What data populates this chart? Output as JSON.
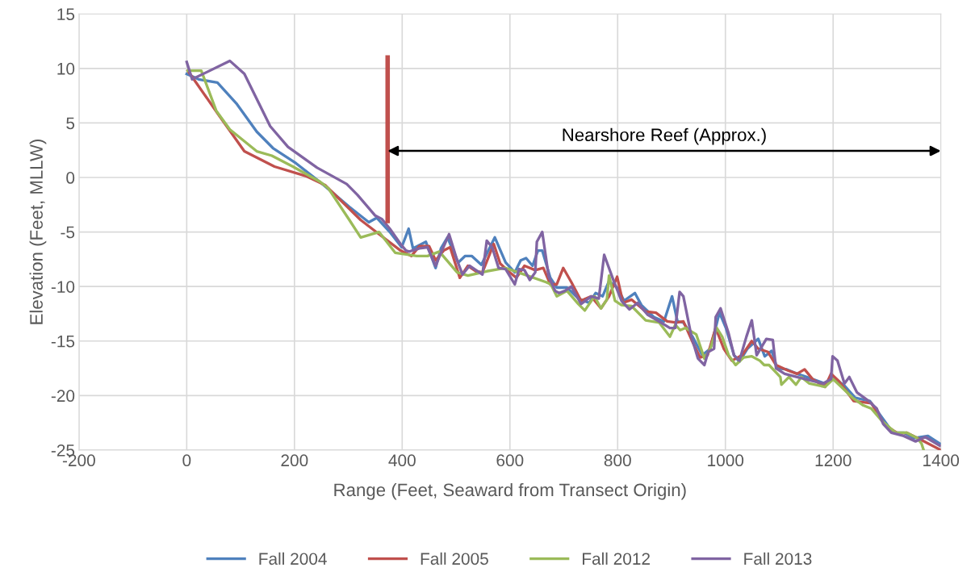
{
  "chart_data": {
    "type": "line",
    "xlabel": "Range (Feet, Seaward from Transect Origin)",
    "ylabel": "Elevation (Feet, MLLW)",
    "xlim": [
      -200,
      1400
    ],
    "xticks": [
      -200,
      0,
      200,
      400,
      600,
      800,
      1000,
      1200,
      1400
    ],
    "ylim": [
      -25,
      15
    ],
    "yticks": [
      -25,
      -20,
      -15,
      -10,
      -5,
      0,
      5,
      10,
      15
    ],
    "grid": true,
    "legend": "bottom",
    "marker": "none",
    "line_style": "solid",
    "annotations": [
      "Nearshore Reef (Approx.)"
    ],
    "series": [
      {
        "name": "Fall 2004",
        "color": "#4f81bd",
        "x": [
          0,
          22,
          57,
          92,
          130,
          160,
          203,
          252,
          302,
          338,
          353,
          377,
          399,
          412,
          420,
          444,
          462,
          472,
          484,
          504,
          517,
          529,
          547,
          560,
          572,
          592,
          609,
          620,
          630,
          642,
          652,
          660,
          675,
          687,
          706,
          727,
          747,
          759,
          772,
          784,
          799,
          812,
          832,
          844,
          867,
          886,
          901,
          911,
          922,
          939,
          957,
          972,
          989,
          1001,
          1016,
          1026,
          1041,
          1061,
          1073,
          1086,
          1096,
          1114,
          1133,
          1151,
          1185,
          1199,
          1221,
          1241,
          1268,
          1286,
          1311,
          1331,
          1350,
          1376,
          1398
        ],
        "values": [
          9.5,
          9.0,
          8.7,
          6.8,
          4.2,
          2.7,
          1.3,
          -0.6,
          -2.7,
          -4.1,
          -3.7,
          -5.0,
          -6.4,
          -4.7,
          -6.5,
          -5.9,
          -8.3,
          -6.5,
          -5.5,
          -7.8,
          -7.2,
          -7.2,
          -8.0,
          -6.7,
          -5.5,
          -7.8,
          -8.7,
          -7.6,
          -7.4,
          -8.1,
          -6.7,
          -6.7,
          -9.2,
          -10.1,
          -10.1,
          -11.1,
          -11.5,
          -10.6,
          -10.9,
          -9.5,
          -10.1,
          -11.3,
          -10.6,
          -11.7,
          -12.8,
          -13.2,
          -10.9,
          -13.2,
          -13.3,
          -14.6,
          -16.3,
          -15.7,
          -12.4,
          -13.8,
          -16.3,
          -16.9,
          -15.7,
          -14.8,
          -16.4,
          -15.9,
          -17.5,
          -17.6,
          -18.0,
          -18.3,
          -18.9,
          -18.3,
          -19.1,
          -20.2,
          -20.5,
          -21.7,
          -23.4,
          -23.4,
          -23.9,
          -23.7,
          -24.4
        ]
      },
      {
        "name": "Fall 2005",
        "color": "#c0504d",
        "x": [
          2,
          57,
          107,
          163,
          223,
          257,
          323,
          357,
          397,
          417,
          432,
          450,
          462,
          477,
          489,
          507,
          522,
          537,
          549,
          570,
          582,
          597,
          612,
          627,
          647,
          662,
          675,
          687,
          699,
          714,
          732,
          751,
          769,
          784,
          799,
          810,
          826,
          852,
          871,
          892,
          909,
          922,
          941,
          953,
          967,
          982,
          997,
          1012,
          1031,
          1049,
          1061,
          1079,
          1094,
          1116,
          1133,
          1147,
          1162,
          1185,
          1196,
          1211,
          1238,
          1271,
          1296,
          1321,
          1336,
          1361,
          1400
        ],
        "values": [
          9.8,
          5.9,
          2.4,
          1.0,
          0.1,
          -0.7,
          -3.9,
          -5.2,
          -6.7,
          -7.2,
          -6.3,
          -6.3,
          -7.6,
          -6.7,
          -6.4,
          -9.2,
          -8.1,
          -8.6,
          -8.7,
          -6.1,
          -7.9,
          -8.6,
          -9.2,
          -8.1,
          -8.5,
          -8.3,
          -9.8,
          -9.8,
          -8.3,
          -9.6,
          -11.3,
          -10.9,
          -12.0,
          -10.9,
          -9.1,
          -11.5,
          -11.2,
          -12.3,
          -12.4,
          -13.2,
          -13.3,
          -13.2,
          -15.3,
          -16.5,
          -16.3,
          -13.8,
          -15.7,
          -16.8,
          -16.3,
          -15.0,
          -15.7,
          -16.0,
          -17.2,
          -17.7,
          -18.0,
          -17.6,
          -18.5,
          -19.2,
          -18.0,
          -18.7,
          -20.5,
          -20.7,
          -22.7,
          -23.5,
          -23.4,
          -24.0,
          -25.0
        ]
      },
      {
        "name": "Fall 2012",
        "color": "#9bbb59",
        "x": [
          2,
          27,
          55,
          80,
          130,
          158,
          197,
          248,
          263,
          302,
          323,
          357,
          387,
          427,
          447,
          469,
          502,
          522,
          557,
          592,
          627,
          667,
          676,
          687,
          706,
          727,
          739,
          757,
          769,
          780,
          784,
          795,
          807,
          826,
          852,
          877,
          897,
          907,
          916,
          926,
          946,
          961,
          972,
          984,
          994,
          1006,
          1019,
          1034,
          1049,
          1064,
          1072,
          1081,
          1102,
          1104,
          1118,
          1131,
          1141,
          1156,
          1185,
          1200,
          1215,
          1236,
          1256,
          1271,
          1292,
          1316,
          1336,
          1356,
          1364,
          1368
        ],
        "values": [
          9.8,
          9.8,
          6.1,
          4.4,
          2.4,
          2.0,
          1.0,
          -0.4,
          -1.0,
          -3.9,
          -5.5,
          -5.0,
          -6.9,
          -7.2,
          -7.2,
          -6.8,
          -8.7,
          -9.0,
          -8.6,
          -8.3,
          -8.9,
          -9.6,
          -9.8,
          -10.9,
          -10.4,
          -11.6,
          -12.2,
          -10.9,
          -12.0,
          -11.2,
          -9.0,
          -11.3,
          -11.7,
          -11.8,
          -13.1,
          -13.3,
          -14.6,
          -13.5,
          -14.0,
          -13.8,
          -14.4,
          -16.6,
          -15.7,
          -13.8,
          -14.6,
          -16.3,
          -17.2,
          -16.5,
          -16.4,
          -16.8,
          -17.2,
          -17.2,
          -18.3,
          -19.0,
          -18.3,
          -19.0,
          -18.3,
          -18.9,
          -19.2,
          -18.5,
          -19.2,
          -20.2,
          -20.9,
          -21.2,
          -22.4,
          -23.4,
          -23.4,
          -23.9,
          -24.4,
          -25.0
        ]
      },
      {
        "name": "Fall 2013",
        "color": "#8064a2",
        "x": [
          0,
          10,
          80,
          107,
          155,
          188,
          242,
          297,
          317,
          350,
          362,
          377,
          397,
          407,
          413,
          432,
          447,
          462,
          472,
          487,
          502,
          512,
          525,
          537,
          549,
          557,
          567,
          579,
          592,
          609,
          617,
          627,
          637,
          647,
          650,
          660,
          672,
          684,
          691,
          702,
          714,
          732,
          751,
          765,
          775,
          792,
          807,
          822,
          837,
          856,
          877,
          897,
          907,
          915,
          922,
          937,
          949,
          961,
          968,
          979,
          982,
          991,
          1006,
          1016,
          1026,
          1039,
          1049,
          1058,
          1076,
          1088,
          1094,
          1110,
          1133,
          1181,
          1196,
          1199,
          1208,
          1221,
          1230,
          1244,
          1266,
          1281,
          1293,
          1308,
          1331,
          1353,
          1371,
          1398
        ],
        "values": [
          10.6,
          9.0,
          10.7,
          9.5,
          4.7,
          2.8,
          0.9,
          -0.6,
          -1.6,
          -3.5,
          -3.8,
          -4.7,
          -6.1,
          -6.7,
          -6.8,
          -6.5,
          -6.4,
          -8.1,
          -6.9,
          -5.2,
          -7.6,
          -8.9,
          -8.1,
          -8.5,
          -8.9,
          -5.8,
          -6.4,
          -8.3,
          -8.4,
          -9.8,
          -8.4,
          -8.5,
          -9.4,
          -8.7,
          -5.9,
          -5.0,
          -9.1,
          -10.4,
          -10.6,
          -10.4,
          -10.0,
          -11.6,
          -10.9,
          -11.1,
          -7.1,
          -9.4,
          -11.3,
          -12.1,
          -11.5,
          -12.6,
          -13.2,
          -13.8,
          -13.8,
          -10.5,
          -10.9,
          -14.6,
          -16.6,
          -17.2,
          -16.0,
          -15.7,
          -12.8,
          -12.0,
          -14.3,
          -16.3,
          -16.8,
          -14.6,
          -13.1,
          -16.3,
          -14.8,
          -14.9,
          -17.5,
          -18.0,
          -18.3,
          -18.9,
          -18.5,
          -16.4,
          -16.8,
          -18.9,
          -18.3,
          -19.7,
          -20.5,
          -21.2,
          -22.6,
          -23.4,
          -23.7,
          -24.2,
          -23.8,
          -24.6
        ]
      },
      {
        "type": "line",
        "color": "#c0504d",
        "x": [
          373,
          373
        ],
        "values": [
          11,
          -4
        ]
      }
    ]
  }
}
